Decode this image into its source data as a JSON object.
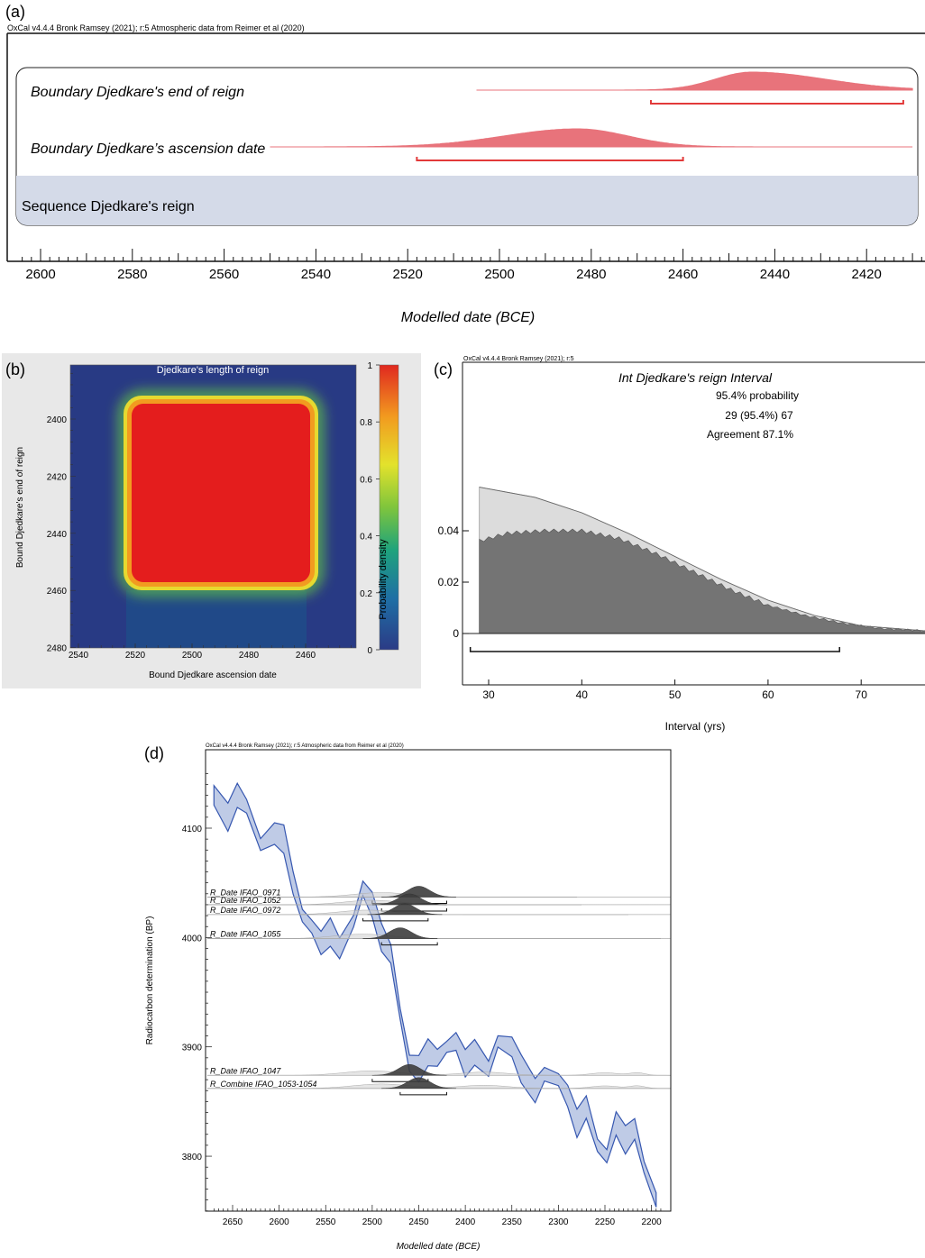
{
  "panel_a": {
    "label": "(a)",
    "credit": "OxCal v4.4.4 Bronk Ramsey (2021); r:5 Atmospheric data from Reimer et al (2020)",
    "xlabel": "Modelled date (BCE)",
    "sequence_label": "Sequence Djedkare's reign",
    "boundaries": [
      {
        "name": "Boundary Djedkare's end of reign",
        "mode": 2445,
        "sigma_left": 8,
        "sigma_right": 16,
        "line_from": 2505,
        "line_to": 2410,
        "range95": [
          2467,
          2412
        ]
      },
      {
        "name": "Boundary Djedkare’s ascension date",
        "mode": 2483,
        "sigma_left": 16,
        "sigma_right": 11,
        "line_from": 2550,
        "line_to": 2410,
        "range95": [
          2518,
          2460
        ]
      }
    ],
    "ticks": [
      "2600",
      "2580",
      "2560",
      "2540",
      "2520",
      "2500",
      "2480",
      "2460",
      "2440",
      "2420"
    ]
  },
  "panel_b": {
    "label": "(b)",
    "title": "Djedkare's length of reign",
    "xlabel": "Bound Djedkare ascension date",
    "ylabel": "Bound Djedkare's end of reign",
    "xticks": [
      "2540",
      "2520",
      "2500",
      "2480",
      "2460"
    ],
    "yticks": [
      "2400",
      "2420",
      "2440",
      "2460",
      "2480"
    ],
    "colorbar_label": "Probability density",
    "colorbar_ticks": [
      "1",
      "0.8",
      "0.6",
      "0.4",
      "0.2",
      "0"
    ]
  },
  "panel_c": {
    "label": "(c)",
    "credit": "OxCal v4.4.4 Bronk Ramsey (2021); r:5",
    "title": "Int Djedkare's reign Interval",
    "prob_text": "95.4% probability",
    "range_text": "29 (95.4%) 67",
    "agreement_text": "Agreement 87.1%",
    "xlabel": "Interval (yrs)",
    "xticks": [
      "30",
      "40",
      "50",
      "60",
      "70"
    ],
    "yticks": [
      "0.04",
      "0.02",
      "0"
    ],
    "range95": [
      29,
      67
    ],
    "prior_points": [
      [
        29,
        0.057
      ],
      [
        35,
        0.053
      ],
      [
        40,
        0.047
      ],
      [
        45,
        0.039
      ],
      [
        50,
        0.03
      ],
      [
        55,
        0.021
      ],
      [
        60,
        0.013
      ],
      [
        65,
        0.007
      ],
      [
        70,
        0.003
      ],
      [
        77,
        0.001
      ]
    ],
    "posterior_points": [
      [
        29,
        0.036
      ],
      [
        32,
        0.039
      ],
      [
        36,
        0.04
      ],
      [
        40,
        0.04
      ],
      [
        44,
        0.037
      ],
      [
        48,
        0.031
      ],
      [
        52,
        0.024
      ],
      [
        56,
        0.017
      ],
      [
        60,
        0.011
      ],
      [
        64,
        0.007
      ],
      [
        68,
        0.004
      ],
      [
        72,
        0.002
      ],
      [
        77,
        0.001
      ]
    ]
  },
  "panel_d": {
    "label": "(d)",
    "credit": "OxCal v4.4.4 Bronk Ramsey (2021); r:5 Atmospheric data from Reimer et al (2020)",
    "xlabel": "Modelled date (BCE)",
    "ylabel": "Radiocarbon determination (BP)",
    "xticks": [
      "2650",
      "2600",
      "2550",
      "2500",
      "2450",
      "2400",
      "2350",
      "2300",
      "2250",
      "2200"
    ],
    "yticks": [
      "4100",
      "4000",
      "3900",
      "3800"
    ],
    "dates": [
      {
        "name": "R_Date IFAO_0971",
        "bp": 4037,
        "mode": 2450,
        "range95": [
          2500,
          2420
        ]
      },
      {
        "name": "R_Date IFAO_1052",
        "bp": 4030,
        "mode": 2460,
        "range95": [
          2490,
          2420
        ]
      },
      {
        "name": "R_Date IFAO_0972",
        "bp": 4021,
        "mode": 2465,
        "range95": [
          2510,
          2440
        ]
      },
      {
        "name": "R_Date IFAO_1055",
        "bp": 3999,
        "mode": 2470,
        "range95": [
          2490,
          2430
        ]
      },
      {
        "name": "R_Date IFAO_1047",
        "bp": 3874,
        "mode": 2460,
        "range95": [
          2500,
          2440
        ]
      },
      {
        "name": "R_Combine IFAO_1053-1054",
        "bp": 3862,
        "mode": 2450,
        "range95": [
          2470,
          2420
        ]
      }
    ],
    "curve": [
      [
        2670,
        4130
      ],
      [
        2655,
        4110
      ],
      [
        2645,
        4130
      ],
      [
        2635,
        4120
      ],
      [
        2620,
        4085
      ],
      [
        2605,
        4095
      ],
      [
        2595,
        4090
      ],
      [
        2585,
        4050
      ],
      [
        2575,
        4020
      ],
      [
        2565,
        4010
      ],
      [
        2555,
        3995
      ],
      [
        2545,
        4005
      ],
      [
        2535,
        3990
      ],
      [
        2520,
        4015
      ],
      [
        2510,
        4045
      ],
      [
        2500,
        4030
      ],
      [
        2490,
        4000
      ],
      [
        2480,
        3985
      ],
      [
        2470,
        3930
      ],
      [
        2460,
        3885
      ],
      [
        2450,
        3880
      ],
      [
        2440,
        3895
      ],
      [
        2430,
        3890
      ],
      [
        2420,
        3900
      ],
      [
        2410,
        3905
      ],
      [
        2400,
        3885
      ],
      [
        2390,
        3895
      ],
      [
        2375,
        3880
      ],
      [
        2365,
        3905
      ],
      [
        2350,
        3900
      ],
      [
        2340,
        3880
      ],
      [
        2325,
        3860
      ],
      [
        2315,
        3875
      ],
      [
        2300,
        3870
      ],
      [
        2290,
        3855
      ],
      [
        2280,
        3830
      ],
      [
        2270,
        3845
      ],
      [
        2258,
        3810
      ],
      [
        2248,
        3800
      ],
      [
        2238,
        3830
      ],
      [
        2228,
        3815
      ],
      [
        2218,
        3825
      ],
      [
        2208,
        3790
      ],
      [
        2195,
        3760
      ]
    ]
  },
  "colors": {
    "boundary": "#e8737b",
    "range_line": "#e23a3a",
    "sequence_bg": "#d4dae8",
    "curve_fill": "#b4c2e2",
    "curve_line": "#3657b0",
    "heat_bg": "#283a84",
    "heat_core": "#e41d1d",
    "prior_fill": "#dcdcdc",
    "posterior_fill": "#6e6e6e"
  }
}
